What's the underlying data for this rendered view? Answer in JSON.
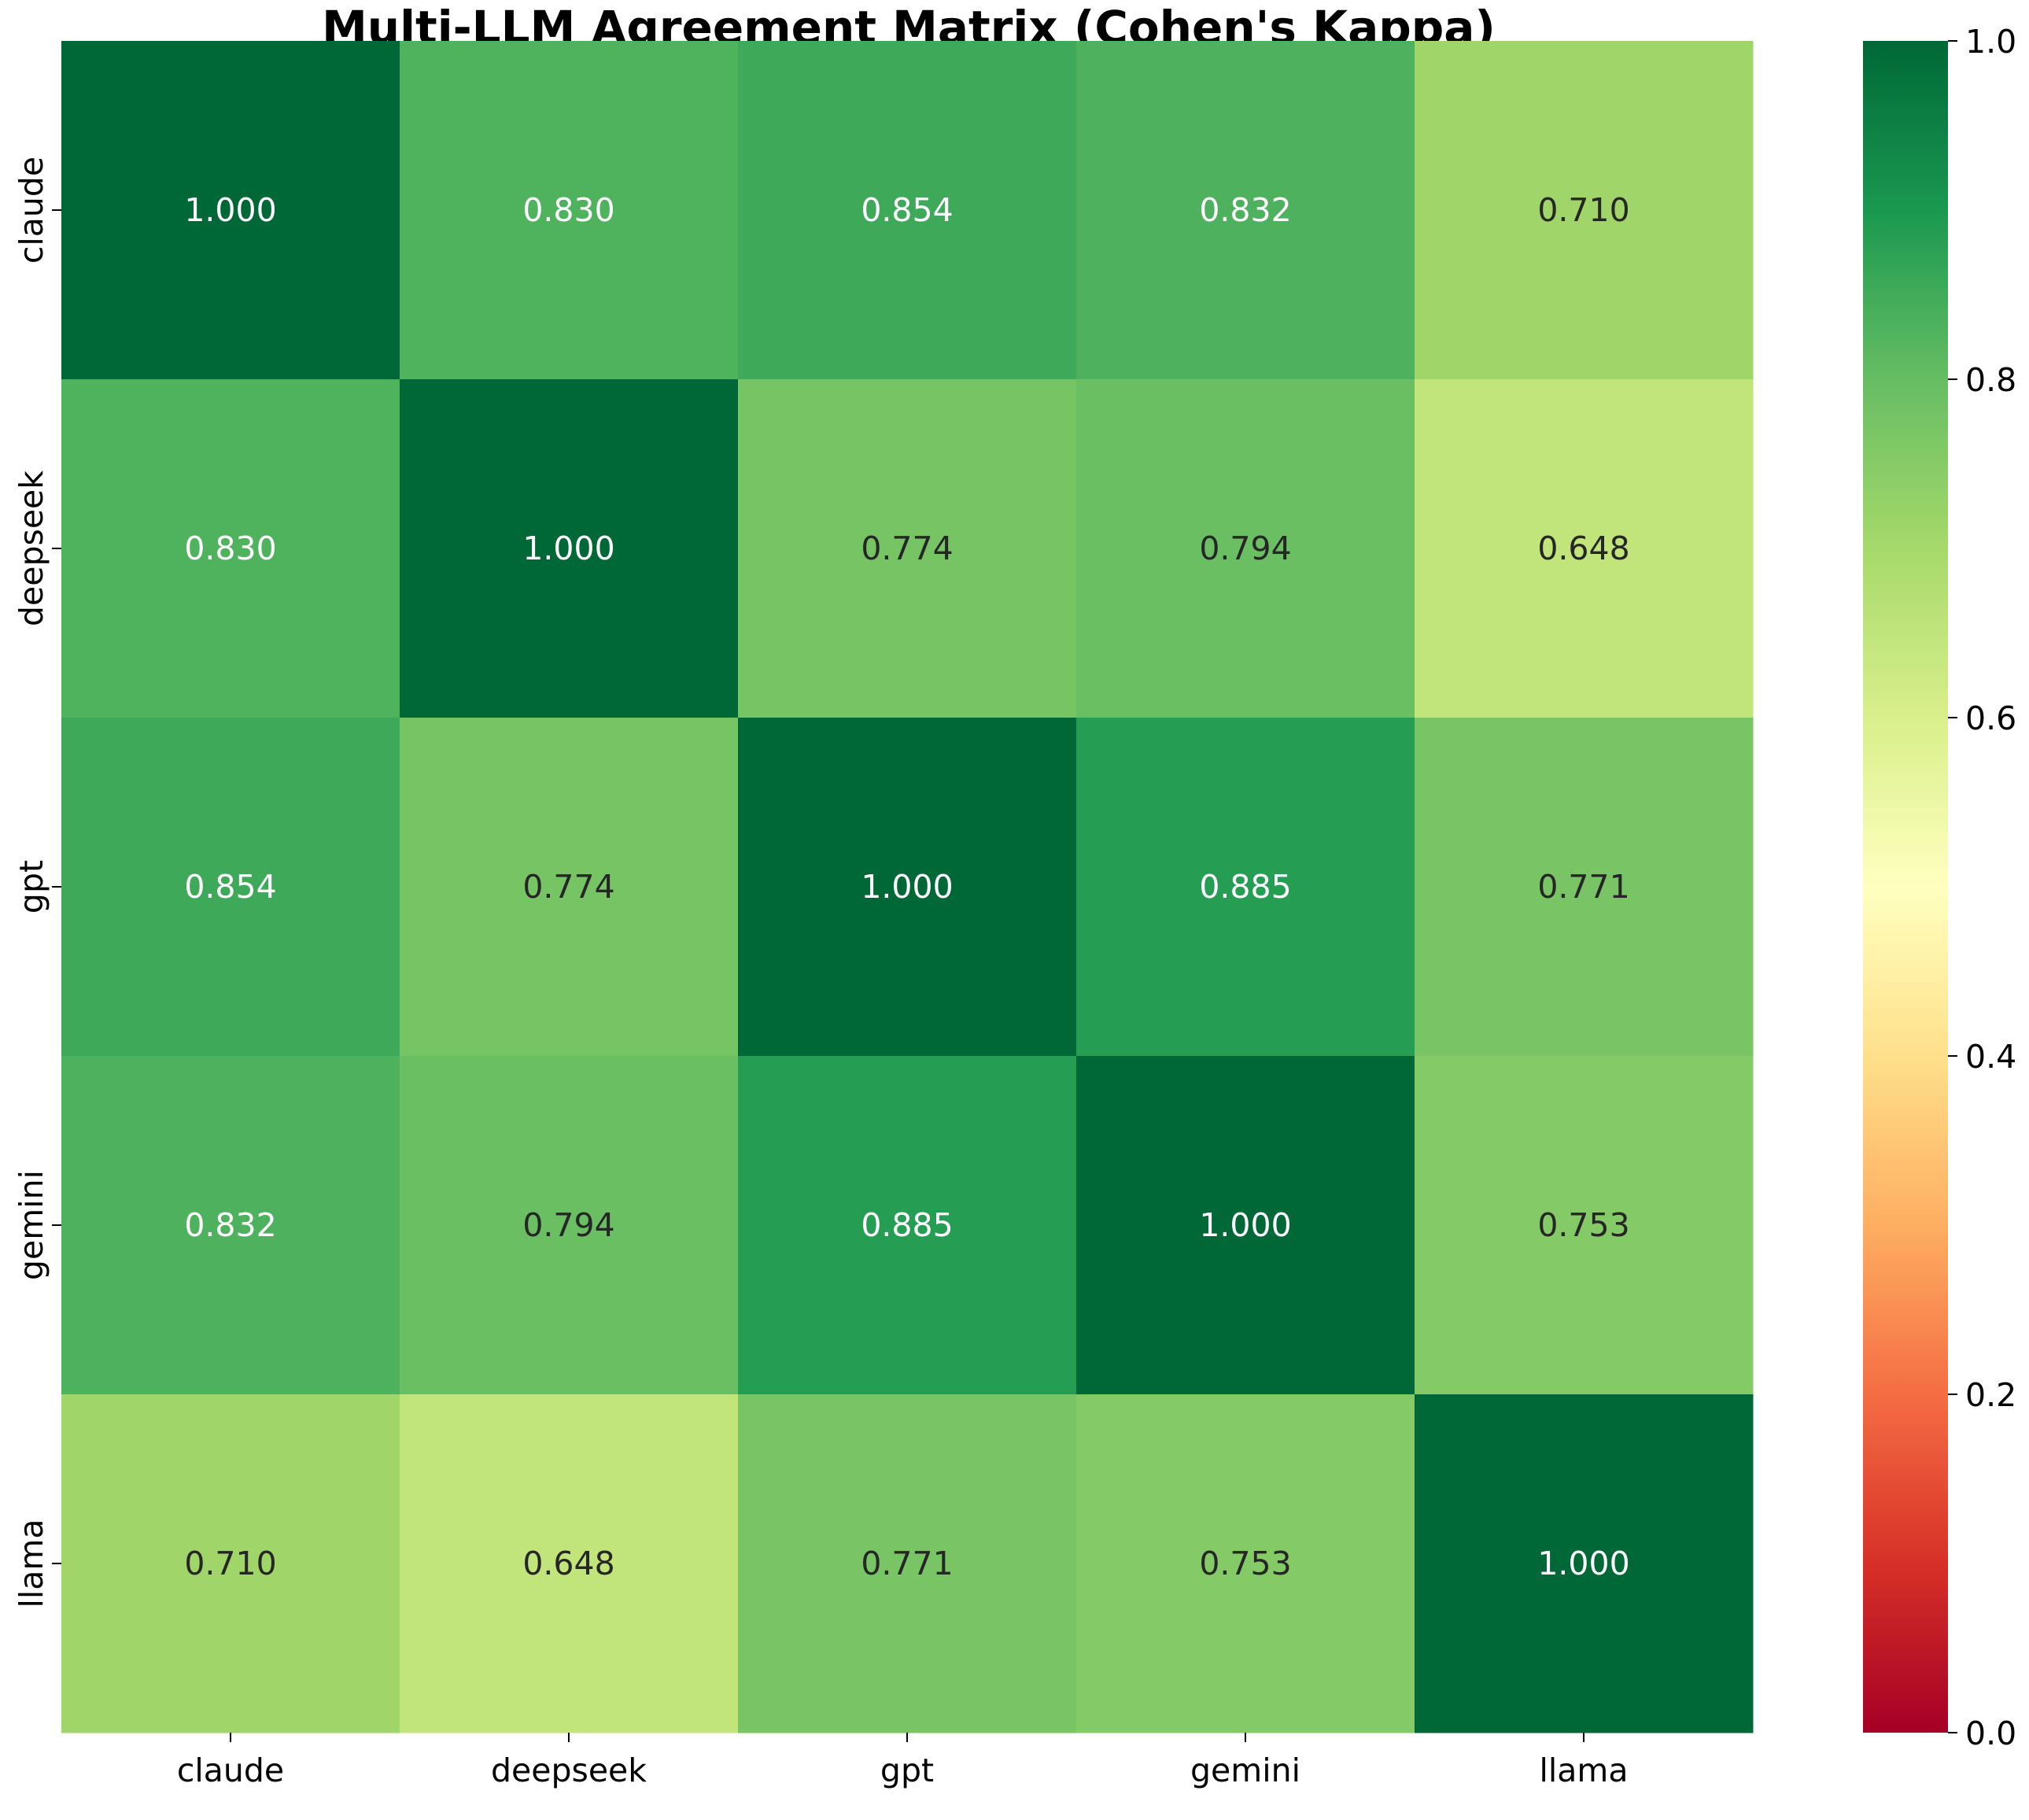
{
  "chart_data": {
    "type": "heatmap",
    "title": "Multi-LLM Agreement Matrix (Cohen's Kappa)",
    "x_labels": [
      "claude",
      "deepseek",
      "gpt",
      "gemini",
      "llama"
    ],
    "y_labels": [
      "claude",
      "deepseek",
      "gpt",
      "gemini",
      "llama"
    ],
    "values": [
      [
        1.0,
        0.83,
        0.854,
        0.832,
        0.71
      ],
      [
        0.83,
        1.0,
        0.774,
        0.794,
        0.648
      ],
      [
        0.854,
        0.774,
        1.0,
        0.885,
        0.771
      ],
      [
        0.832,
        0.794,
        0.885,
        1.0,
        0.753
      ],
      [
        0.71,
        0.648,
        0.771,
        0.753,
        1.0
      ]
    ],
    "annotations": [
      [
        "1.000",
        "0.830",
        "0.854",
        "0.832",
        "0.710"
      ],
      [
        "0.830",
        "1.000",
        "0.774",
        "0.794",
        "0.648"
      ],
      [
        "0.854",
        "0.774",
        "1.000",
        "0.885",
        "0.771"
      ],
      [
        "0.832",
        "0.794",
        "0.885",
        "1.000",
        "0.753"
      ],
      [
        "0.710",
        "0.648",
        "0.771",
        "0.753",
        "1.000"
      ]
    ],
    "colormap": "RdYlGn",
    "vmin": 0.0,
    "vmax": 1.0,
    "colorbar_ticks": [
      "0.0",
      "0.2",
      "0.4",
      "0.6",
      "0.8",
      "1.0"
    ],
    "colorbar_tick_values": [
      0.0,
      0.2,
      0.4,
      0.6,
      0.8,
      1.0
    ],
    "colors": {
      "annotation_light": "#ffffff",
      "annotation_dark": "#262626"
    }
  }
}
